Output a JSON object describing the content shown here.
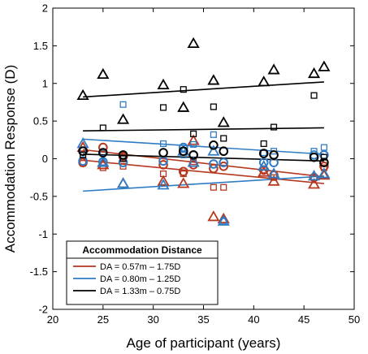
{
  "chart_data": {
    "type": "scatter",
    "xlabel": "Age of participant (years)",
    "ylabel": "Accommodation Response (D)",
    "xlim": [
      20,
      50
    ],
    "ylim": [
      -2,
      2
    ],
    "x_ticks": [
      20,
      25,
      30,
      35,
      40,
      45,
      50
    ],
    "y_ticks": [
      -2,
      -1.5,
      -1,
      -0.5,
      0,
      0.5,
      1,
      1.5,
      2
    ],
    "x_tick_labels": [
      "20",
      "25",
      "30",
      "35",
      "40",
      "45",
      "50"
    ],
    "y_tick_labels": [
      "-2",
      "-1.5",
      "-1",
      "-0.5",
      "0",
      "0.5",
      "1",
      "1.5",
      "2"
    ],
    "grid": false,
    "legend": {
      "title": "Accommodation Distance",
      "placement": "bottom-left",
      "entries": [
        {
          "label": "DA = 0.57m – 1.75D",
          "color": "#b5381f"
        },
        {
          "label": "DA = 0.80m – 1.25D",
          "color": "#2f7cc4"
        },
        {
          "label": "DA = 1.33m – 0.75D",
          "color": "#000000"
        }
      ]
    },
    "series": [
      {
        "distance": "0.57m",
        "color": "#b5381f",
        "triangles": [
          [
            23,
            0.15
          ],
          [
            25,
            -0.08
          ],
          [
            27,
            -0.33
          ],
          [
            31,
            -0.3
          ],
          [
            33,
            -0.33
          ],
          [
            34,
            0.24
          ],
          [
            36,
            -0.77
          ],
          [
            37,
            -0.8
          ],
          [
            41,
            -0.18
          ],
          [
            42,
            -0.3
          ],
          [
            46,
            -0.34
          ],
          [
            47,
            -0.22
          ]
        ],
        "circles": [
          [
            23,
            -0.05
          ],
          [
            25,
            0.15
          ],
          [
            27,
            0.03
          ],
          [
            31,
            -0.08
          ],
          [
            33,
            -0.17
          ],
          [
            34,
            -0.08
          ],
          [
            36,
            -0.13
          ],
          [
            37,
            -0.1
          ],
          [
            41,
            -0.15
          ],
          [
            42,
            -0.22
          ],
          [
            46,
            -0.25
          ],
          [
            47,
            -0.1
          ]
        ],
        "squares": [
          [
            23,
            -0.06
          ],
          [
            25,
            -0.12
          ],
          [
            27,
            -0.1
          ],
          [
            31,
            -0.2
          ],
          [
            33,
            -0.2
          ],
          [
            34,
            -0.04
          ],
          [
            36,
            -0.38
          ],
          [
            37,
            -0.38
          ],
          [
            41,
            -0.15
          ],
          [
            42,
            -0.25
          ],
          [
            46,
            -0.25
          ],
          [
            47,
            -0.12
          ]
        ],
        "fit_lines": [
          [
            [
              23,
              0.12
            ],
            [
              47,
              -0.24
            ]
          ],
          [
            [
              23,
              -0.02
            ],
            [
              47,
              -0.33
            ]
          ]
        ]
      },
      {
        "distance": "0.80m",
        "color": "#2f7cc4",
        "triangles": [
          [
            23,
            0.2
          ],
          [
            25,
            -0.05
          ],
          [
            27,
            -0.33
          ],
          [
            31,
            -0.35
          ],
          [
            33,
            0.1
          ],
          [
            34,
            -0.05
          ],
          [
            36,
            0.1
          ],
          [
            37,
            -0.83
          ],
          [
            41,
            -0.1
          ],
          [
            42,
            -0.2
          ],
          [
            46,
            -0.23
          ],
          [
            47,
            -0.2
          ]
        ],
        "circles": [
          [
            23,
            -0.03
          ],
          [
            25,
            -0.04
          ],
          [
            27,
            -0.05
          ],
          [
            31,
            -0.03
          ],
          [
            33,
            0.15
          ],
          [
            34,
            0.05
          ],
          [
            36,
            -0.07
          ],
          [
            37,
            -0.05
          ],
          [
            41,
            -0.05
          ],
          [
            42,
            -0.05
          ],
          [
            46,
            0.05
          ],
          [
            47,
            0.05
          ]
        ],
        "squares": [
          [
            23,
            0.12
          ],
          [
            25,
            0.08
          ],
          [
            27,
            0.72
          ],
          [
            31,
            0.2
          ],
          [
            33,
            0.05
          ],
          [
            34,
            0.19
          ],
          [
            36,
            0.32
          ],
          [
            37,
            -0.83
          ],
          [
            41,
            0.08
          ],
          [
            42,
            0.1
          ],
          [
            46,
            0.1
          ],
          [
            47,
            0.15
          ]
        ],
        "fit_lines": [
          [
            [
              23,
              0.26
            ],
            [
              47,
              0.06
            ]
          ],
          [
            [
              23,
              -0.43
            ],
            [
              47,
              -0.23
            ]
          ]
        ]
      },
      {
        "distance": "1.33m",
        "color": "#000000",
        "triangles": [
          [
            23,
            0.84
          ],
          [
            25,
            1.12
          ],
          [
            27,
            0.52
          ],
          [
            31,
            0.98
          ],
          [
            33,
            0.68
          ],
          [
            34,
            1.53
          ],
          [
            36,
            1.04
          ],
          [
            37,
            0.48
          ],
          [
            41,
            1.02
          ],
          [
            42,
            1.18
          ],
          [
            46,
            1.13
          ],
          [
            47,
            1.22
          ]
        ],
        "circles": [
          [
            23,
            0.1
          ],
          [
            25,
            0.08
          ],
          [
            27,
            0.05
          ],
          [
            31,
            0.08
          ],
          [
            33,
            0.1
          ],
          [
            34,
            0.05
          ],
          [
            36,
            0.18
          ],
          [
            37,
            0.1
          ],
          [
            41,
            0.07
          ],
          [
            42,
            0.05
          ],
          [
            46,
            0.02
          ],
          [
            47,
            -0.05
          ]
        ],
        "squares": [
          [
            23,
            0.05
          ],
          [
            25,
            0.41
          ],
          [
            27,
            0.0
          ],
          [
            31,
            0.68
          ],
          [
            33,
            0.92
          ],
          [
            34,
            0.33
          ],
          [
            36,
            0.69
          ],
          [
            37,
            0.27
          ],
          [
            41,
            0.2
          ],
          [
            42,
            0.42
          ],
          [
            46,
            0.84
          ],
          [
            47,
            0.02
          ]
        ],
        "fit_lines": [
          [
            [
              23,
              0.82
            ],
            [
              47,
              1.02
            ]
          ],
          [
            [
              23,
              0.37
            ],
            [
              47,
              0.41
            ]
          ],
          [
            [
              23,
              0.06
            ],
            [
              47,
              -0.03
            ]
          ]
        ]
      }
    ]
  }
}
